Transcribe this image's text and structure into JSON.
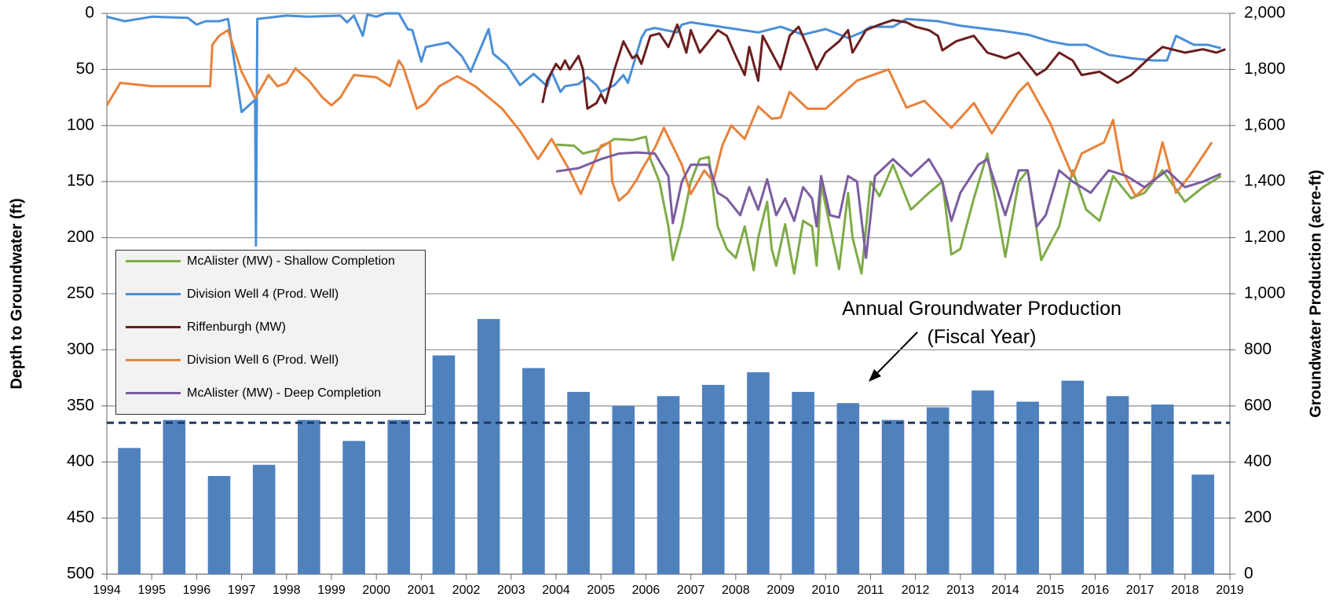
{
  "chart_data": {
    "type": "line",
    "ylabel": "Depth to Groundwater (ft)",
    "y2label": "Groundwater Production (acre-ft)",
    "annotation": "Annual Groundwater Production (Fiscal Year)",
    "xlim": [
      1994,
      2019
    ],
    "xticks": [
      1994,
      1995,
      1996,
      1997,
      1998,
      1999,
      2000,
      2001,
      2002,
      2003,
      2004,
      2005,
      2006,
      2007,
      2008,
      2009,
      2010,
      2011,
      2012,
      2013,
      2014,
      2015,
      2016,
      2017,
      2018,
      2019
    ],
    "ylim": [
      500,
      0
    ],
    "yticks": [
      0,
      50,
      100,
      150,
      200,
      250,
      300,
      350,
      400,
      450,
      500
    ],
    "y2lim": [
      0,
      2000
    ],
    "y2ticks": [
      0,
      200,
      400,
      600,
      800,
      {
        "value": 1000,
        "label": "1,000"
      },
      {
        "value": 1200,
        "label": "1,200"
      },
      {
        "value": 1400,
        "label": "1,400"
      },
      {
        "value": 1600,
        "label": "1,600"
      },
      {
        "value": 1800,
        "label": "1,800"
      },
      {
        "value": 2000,
        "label": "2,000"
      }
    ],
    "grid": true,
    "legend": "left",
    "hlines": [
      {
        "value": 540,
        "axis": "y2",
        "color": "#1f3864",
        "dash": true
      }
    ],
    "series": [
      {
        "type": "bar",
        "axis": "y2",
        "color": "#4f81bd",
        "x": [
          1994.5,
          1995.5,
          1996.5,
          1997.5,
          1998.5,
          1999.5,
          2000.5,
          2001.5,
          2002.5,
          2003.5,
          2004.5,
          2005.5,
          2006.5,
          2007.5,
          2008.5,
          2009.5,
          2010.5,
          2011.5,
          2012.5,
          2013.5,
          2014.5,
          2015.5,
          2016.5,
          2017.5,
          2018.4
        ],
        "values": [
          450,
          550,
          350,
          390,
          550,
          475,
          550,
          780,
          910,
          735,
          650,
          600,
          635,
          675,
          720,
          650,
          610,
          550,
          595,
          655,
          615,
          690,
          635,
          605,
          355
        ]
      },
      {
        "type": "line",
        "name": "McAlister (MW) - Shallow Completion",
        "color": "#7fab48",
        "x": [
          2004.0,
          2004.4,
          2004.6,
          2004.9,
          2005.3,
          2005.7,
          2006.0,
          2006.1,
          2006.3,
          2006.5,
          2006.6,
          2006.8,
          2007.0,
          2007.2,
          2007.4,
          2007.6,
          2007.8,
          2008.0,
          2008.2,
          2008.4,
          2008.5,
          2008.7,
          2008.8,
          2008.9,
          2009.1,
          2009.3,
          2009.5,
          2009.7,
          2009.8,
          2009.9,
          2010.1,
          2010.3,
          2010.5,
          2010.6,
          2010.8,
          2011.0,
          2011.2,
          2011.5,
          2011.9,
          2012.3,
          2012.6,
          2012.8,
          2013.0,
          2013.3,
          2013.6,
          2014.0,
          2014.3,
          2014.5,
          2014.8,
          2015.2,
          2015.5,
          2015.8,
          2016.1,
          2016.4,
          2016.8,
          2017.1,
          2017.5,
          2018.0,
          2018.4,
          2018.8
        ],
        "values": [
          117,
          118,
          125,
          122,
          112,
          113,
          110,
          130,
          150,
          190,
          220,
          190,
          150,
          130,
          128,
          190,
          210,
          218,
          190,
          229,
          200,
          168,
          210,
          225,
          188,
          232,
          185,
          190,
          225,
          152,
          190,
          228,
          160,
          200,
          232,
          150,
          163,
          135,
          175,
          160,
          150,
          215,
          210,
          165,
          125,
          217,
          150,
          140,
          220,
          190,
          140,
          175,
          185,
          145,
          165,
          160,
          140,
          168,
          155,
          145
        ]
      },
      {
        "type": "line",
        "name": "Division Well 4 (Prod. Well)",
        "color": "#4a8fd8",
        "x": [
          1994.0,
          1994.4,
          1995.0,
          1995.8,
          1996.0,
          1996.2,
          1996.5,
          1996.7,
          1997.0,
          1997.3,
          1997.32,
          1997.35,
          1998.0,
          1998.5,
          1999.2,
          1999.35,
          1999.5,
          1999.7,
          1999.8,
          2000.0,
          2000.2,
          2000.5,
          2000.7,
          2000.8,
          2001.0,
          2001.1,
          2001.6,
          2001.9,
          2002.1,
          2002.5,
          2002.6,
          2002.9,
          2003.2,
          2003.5,
          2003.8,
          2003.9,
          2004.1,
          2004.2,
          2004.5,
          2004.7,
          2004.9,
          2005.0,
          2005.3,
          2005.5,
          2005.6,
          2005.9,
          2006.0,
          2006.2,
          2006.7,
          2006.8,
          2007.0,
          2008.0,
          2008.5,
          2009.0,
          2009.5,
          2010.0,
          2010.5,
          2010.8,
          2011.0,
          2011.5,
          2011.8,
          2012.5,
          2013.0,
          2014.0,
          2014.5,
          2015.0,
          2015.4,
          2015.8,
          2016.3,
          2016.8,
          2017.3,
          2017.6,
          2017.8,
          2018.2,
          2018.5,
          2018.8
        ],
        "values": [
          3,
          7,
          3,
          4,
          10,
          7,
          7,
          5,
          88,
          77,
          207,
          5,
          2,
          3,
          2,
          8,
          2,
          20,
          1,
          3,
          0,
          0,
          14,
          15,
          43,
          30,
          26,
          38,
          52,
          14,
          36,
          46,
          64,
          54,
          65,
          52,
          70,
          65,
          63,
          57,
          64,
          70,
          64,
          55,
          62,
          22,
          15,
          13,
          17,
          10,
          8,
          14,
          17,
          12,
          19,
          14,
          22,
          17,
          12,
          12,
          5,
          7,
          11,
          16,
          19,
          25,
          28,
          28,
          37,
          40,
          42,
          42,
          20,
          28,
          28,
          31
        ]
      },
      {
        "type": "line",
        "name": "Riffenburgh (MW)",
        "color": "#6b1e1e",
        "x": [
          2003.7,
          2003.8,
          2004.0,
          2004.1,
          2004.2,
          2004.3,
          2004.5,
          2004.6,
          2004.7,
          2004.9,
          2005.0,
          2005.1,
          2005.3,
          2005.5,
          2005.7,
          2005.8,
          2005.9,
          2006.1,
          2006.3,
          2006.5,
          2006.7,
          2006.9,
          2007.0,
          2007.2,
          2007.4,
          2007.6,
          2007.8,
          2008.0,
          2008.2,
          2008.3,
          2008.5,
          2008.6,
          2008.8,
          2009.0,
          2009.2,
          2009.4,
          2009.6,
          2009.8,
          2010.0,
          2010.3,
          2010.5,
          2010.6,
          2010.9,
          2011.2,
          2011.5,
          2011.8,
          2012.0,
          2012.3,
          2012.5,
          2012.6,
          2012.9,
          2013.3,
          2013.6,
          2014.0,
          2014.3,
          2014.7,
          2014.9,
          2015.2,
          2015.5,
          2015.7,
          2016.1,
          2016.5,
          2016.8,
          2017.2,
          2017.5,
          2018.0,
          2018.4,
          2018.7,
          2018.9
        ],
        "values": [
          80,
          60,
          45,
          50,
          42,
          50,
          38,
          50,
          85,
          80,
          72,
          80,
          50,
          25,
          40,
          37,
          45,
          20,
          18,
          30,
          10,
          35,
          15,
          35,
          25,
          15,
          20,
          38,
          55,
          30,
          60,
          20,
          35,
          50,
          20,
          12,
          30,
          50,
          35,
          25,
          15,
          35,
          15,
          10,
          6,
          8,
          12,
          15,
          20,
          33,
          25,
          20,
          35,
          40,
          35,
          55,
          50,
          35,
          42,
          55,
          52,
          62,
          55,
          40,
          30,
          35,
          32,
          35,
          32
        ]
      },
      {
        "type": "line",
        "name": "Division Well 6 (Prod. Well)",
        "color": "#e8823a",
        "x": [
          1994.0,
          1994.3,
          1995.0,
          1996.0,
          1996.3,
          1996.35,
          1996.5,
          1996.7,
          1997.0,
          1997.3,
          1997.6,
          1997.8,
          1998.0,
          1998.2,
          1998.5,
          1998.8,
          1999.0,
          1999.2,
          1999.5,
          2000.0,
          2000.3,
          2000.5,
          2000.6,
          2000.9,
          2001.1,
          2001.4,
          2001.8,
          2002.2,
          2002.8,
          2003.2,
          2003.6,
          2003.9,
          2004.3,
          2004.55,
          2005.0,
          2005.2,
          2005.25,
          2005.4,
          2005.6,
          2005.8,
          2005.9,
          2006.2,
          2006.4,
          2006.8,
          2007.0,
          2007.3,
          2007.5,
          2007.7,
          2007.9,
          2008.2,
          2008.5,
          2008.8,
          2009.0,
          2009.2,
          2009.6,
          2010.0,
          2010.7,
          2011.4,
          2011.8,
          2012.2,
          2012.8,
          2013.3,
          2013.7,
          2014.3,
          2014.5,
          2015.0,
          2015.5,
          2015.7,
          2016.2,
          2016.4,
          2016.6,
          2016.9,
          2017.3,
          2017.5,
          2017.8,
          2018.1,
          2018.6
        ],
        "values": [
          82,
          62,
          65,
          65,
          65,
          28,
          20,
          15,
          52,
          76,
          55,
          65,
          62,
          49,
          60,
          75,
          82,
          75,
          55,
          57,
          65,
          42,
          48,
          85,
          80,
          65,
          56,
          65,
          85,
          105,
          130,
          112,
          140,
          161,
          118,
          115,
          150,
          167,
          160,
          148,
          140,
          120,
          102,
          135,
          161,
          140,
          150,
          118,
          100,
          112,
          83,
          94,
          93,
          70,
          85,
          85,
          60,
          50,
          84,
          78,
          102,
          80,
          107,
          70,
          62,
          98,
          145,
          125,
          115,
          95,
          140,
          163,
          148,
          115,
          160,
          145,
          115
        ]
      },
      {
        "type": "line",
        "name": "McAlister (MW) - Deep Completion",
        "color": "#7b5ca0",
        "x": [
          2004.0,
          2004.5,
          2005.0,
          2005.4,
          2005.8,
          2006.2,
          2006.5,
          2006.6,
          2006.8,
          2007.0,
          2007.4,
          2007.6,
          2007.8,
          2008.1,
          2008.3,
          2008.5,
          2008.7,
          2008.9,
          2009.1,
          2009.3,
          2009.5,
          2009.7,
          2009.8,
          2009.9,
          2010.1,
          2010.3,
          2010.5,
          2010.7,
          2010.9,
          2011.1,
          2011.5,
          2011.9,
          2012.3,
          2012.6,
          2012.8,
          2013.0,
          2013.4,
          2013.6,
          2014.0,
          2014.3,
          2014.5,
          2014.7,
          2014.9,
          2015.2,
          2015.5,
          2015.9,
          2016.3,
          2016.7,
          2017.1,
          2017.6,
          2018.0,
          2018.4,
          2018.8
        ],
        "values": [
          141,
          138,
          130,
          125,
          124,
          125,
          145,
          187,
          150,
          135,
          135,
          160,
          165,
          180,
          155,
          175,
          148,
          180,
          165,
          185,
          155,
          165,
          190,
          145,
          180,
          182,
          145,
          150,
          218,
          145,
          130,
          145,
          130,
          150,
          185,
          160,
          135,
          130,
          180,
          140,
          140,
          190,
          180,
          140,
          150,
          160,
          140,
          145,
          155,
          140,
          155,
          150,
          143
        ]
      }
    ]
  }
}
